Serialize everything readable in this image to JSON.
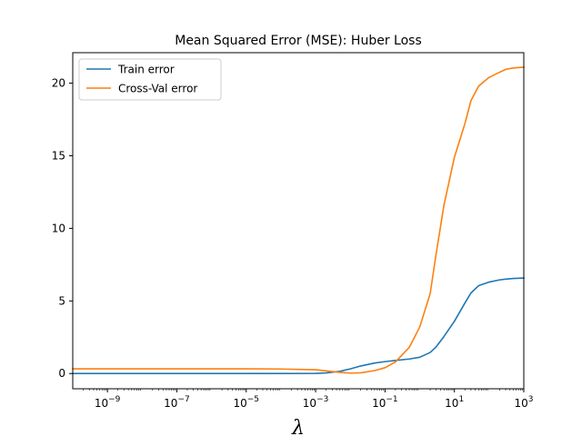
{
  "chart_data": {
    "type": "line",
    "title": "Mean Squared Error (MSE): Huber Loss",
    "xlabel": "λ",
    "ylabel": "",
    "x_scale": "log",
    "xlim": [
      1e-10,
      1000
    ],
    "ylim": [
      -1.05,
      22.1
    ],
    "x_ticks": [
      {
        "base": "10",
        "exp": "−9",
        "value": 1e-09
      },
      {
        "base": "10",
        "exp": "−7",
        "value": 1e-07
      },
      {
        "base": "10",
        "exp": "−5",
        "value": 1e-05
      },
      {
        "base": "10",
        "exp": "−3",
        "value": 0.001
      },
      {
        "base": "10",
        "exp": "−1",
        "value": 0.1
      },
      {
        "base": "10",
        "exp": "1",
        "value": 10
      },
      {
        "base": "10",
        "exp": "3",
        "value": 1000
      }
    ],
    "y_ticks": [
      0,
      5,
      10,
      15,
      20
    ],
    "legend_position": "top-left",
    "grid": false,
    "series": [
      {
        "name": "Train error",
        "color": "#1f77b4",
        "x": [
          1e-10,
          1e-09,
          1e-08,
          1e-07,
          1e-06,
          1e-05,
          0.0001,
          0.001,
          0.002,
          0.005,
          0.01,
          0.02,
          0.05,
          0.1,
          0.2,
          0.5,
          1,
          2,
          3,
          5,
          10,
          20,
          30,
          50,
          100,
          200,
          300,
          500,
          1000
        ],
        "y": [
          0.0,
          0.0,
          0.0,
          0.0,
          0.0,
          0.0,
          0.0,
          0.01,
          0.04,
          0.15,
          0.32,
          0.52,
          0.72,
          0.82,
          0.9,
          1.0,
          1.12,
          1.45,
          1.85,
          2.55,
          3.6,
          4.85,
          5.55,
          6.05,
          6.3,
          6.45,
          6.5,
          6.55,
          6.58
        ]
      },
      {
        "name": "Cross-Val error",
        "color": "#ff7f0e",
        "x": [
          1e-10,
          1e-09,
          1e-08,
          1e-07,
          1e-06,
          1e-05,
          0.0001,
          0.001,
          0.002,
          0.005,
          0.01,
          0.02,
          0.05,
          0.1,
          0.2,
          0.5,
          1,
          2,
          3,
          5,
          10,
          20,
          30,
          50,
          100,
          200,
          300,
          500,
          1000
        ],
        "y": [
          0.32,
          0.32,
          0.32,
          0.32,
          0.32,
          0.32,
          0.31,
          0.26,
          0.18,
          0.08,
          0.03,
          0.05,
          0.2,
          0.4,
          0.8,
          1.8,
          3.2,
          5.5,
          8.3,
          11.6,
          14.9,
          17.2,
          18.8,
          19.8,
          20.4,
          20.75,
          20.95,
          21.05,
          21.1
        ]
      }
    ]
  }
}
